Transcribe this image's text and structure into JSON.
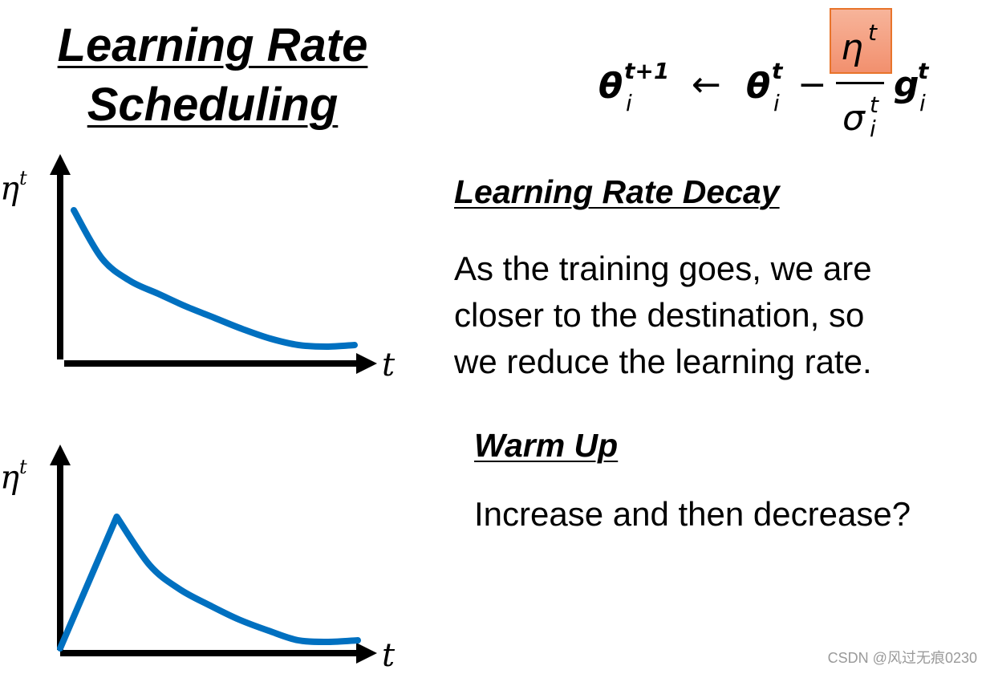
{
  "title": {
    "line1": "Learning Rate",
    "line2": "Scheduling"
  },
  "formula": {
    "lhs_theta": "θ",
    "lhs_sup": "t+1",
    "lhs_sub": "i",
    "arrow": "←",
    "rhs_theta": "θ",
    "rhs_sup": "t",
    "rhs_sub": "i",
    "minus": "−",
    "numerator": "η",
    "numerator_sup": "t",
    "denominator": "σ",
    "denominator_sup": "t",
    "denominator_sub": "i",
    "g": "g",
    "g_sup": "t",
    "g_sub": "i",
    "highlight_color": "#f4a07f"
  },
  "decay": {
    "heading": "Learning Rate Decay",
    "lines": [
      "As the training goes, we are",
      "closer to the destination, so",
      "we reduce the learning rate."
    ]
  },
  "warmup": {
    "heading": "Warm Up",
    "text": "Increase and then decrease?"
  },
  "watermark": "CSDN @风过无痕0230",
  "chart_data": [
    {
      "type": "line",
      "title": "",
      "xlabel": "t",
      "ylabel": "η",
      "ylabel_sup": "t",
      "x": [
        0,
        0.1,
        0.2,
        0.3,
        0.4,
        0.5,
        0.6,
        0.7,
        0.8,
        0.9,
        1.0
      ],
      "y": [
        0.9,
        0.6,
        0.46,
        0.38,
        0.3,
        0.23,
        0.16,
        0.1,
        0.06,
        0.05,
        0.06
      ],
      "color": "#0070c0"
    },
    {
      "type": "line",
      "title": "",
      "xlabel": "t",
      "ylabel": "η",
      "ylabel_sup": "t",
      "x": [
        0,
        0.19,
        0.3,
        0.4,
        0.5,
        0.6,
        0.7,
        0.8,
        0.9,
        1.0
      ],
      "y": [
        0.0,
        0.82,
        0.52,
        0.37,
        0.27,
        0.18,
        0.11,
        0.05,
        0.04,
        0.05
      ],
      "color": "#0070c0"
    }
  ]
}
